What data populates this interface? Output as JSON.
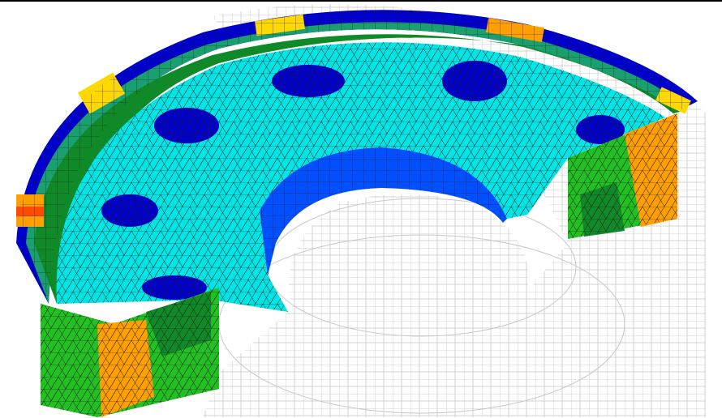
{
  "viewer": {
    "content": "fea-contour-half-annulus",
    "colors": {
      "background": "#ffffff",
      "mesh_wire": "#c8c8c8",
      "element_edge": "#1a1a1a",
      "contour": [
        "#0000cc",
        "#0050ff",
        "#00e5e5",
        "#1aa06e",
        "#108a28",
        "#22c022",
        "#b8e020",
        "#ffd800",
        "#ffa000",
        "#ff4a00",
        "#ee0000"
      ]
    }
  }
}
